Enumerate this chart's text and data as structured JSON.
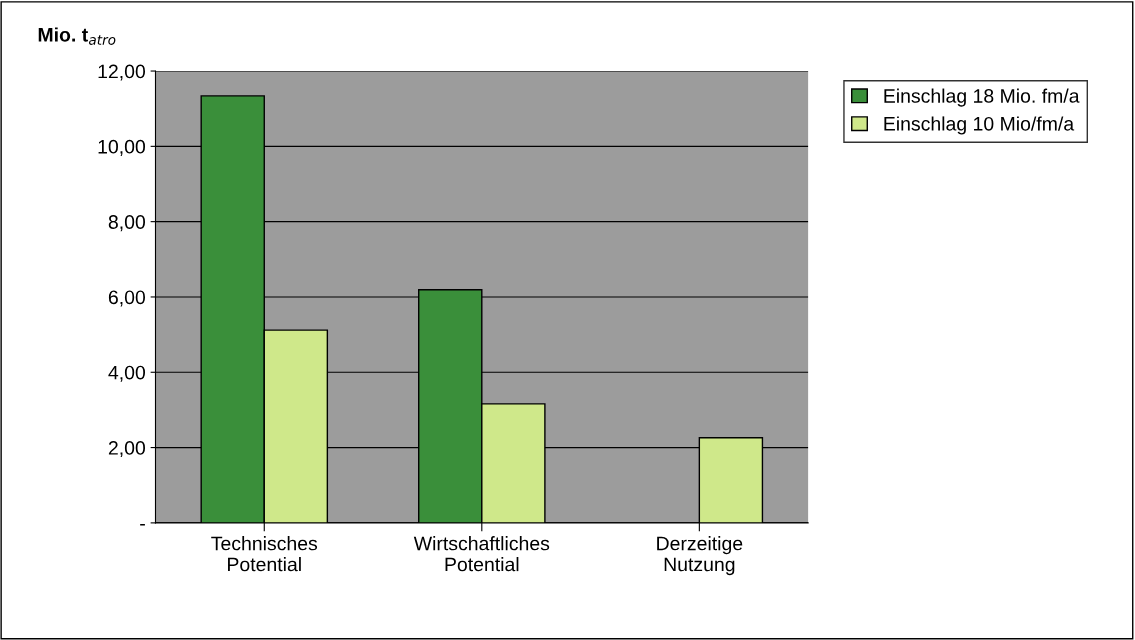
{
  "chart_data": {
    "type": "bar",
    "ylabel": "Mio. t$_{atro}$",
    "categories": [
      "Technisches\nPotential",
      "Wirtschaftliches\nPotential",
      "Derzeitige\nNutzung"
    ],
    "series": [
      {
        "name": "Einschlag 18 Mio. fm/a",
        "color": "#3a8f3a",
        "values": [
          11.34,
          6.19,
          null
        ]
      },
      {
        "name": "Einschlag 10 Mio/fm/a",
        "color": "#cfe88a",
        "values": [
          5.12,
          3.16,
          2.26
        ]
      }
    ],
    "ylim": [
      0,
      12
    ],
    "yticks": [
      {
        "value": 0,
        "label": "-"
      },
      {
        "value": 2,
        "label": "2,00"
      },
      {
        "value": 4,
        "label": "4,00"
      },
      {
        "value": 6,
        "label": "6,00"
      },
      {
        "value": 8,
        "label": "8,00"
      },
      {
        "value": 10,
        "label": "10,00"
      },
      {
        "value": 12,
        "label": "12,00"
      }
    ],
    "grid": "y",
    "legend": "right"
  }
}
